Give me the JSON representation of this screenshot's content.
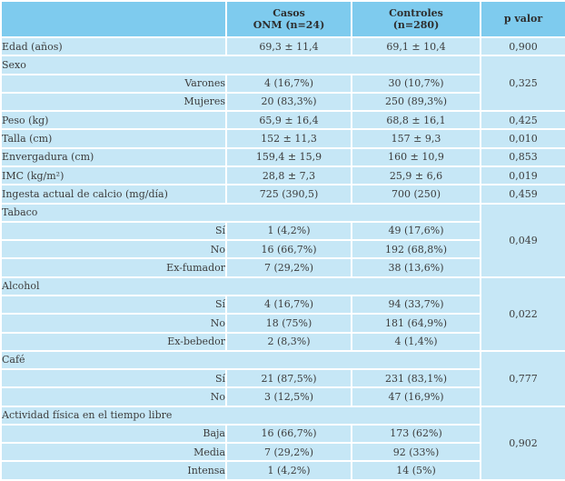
{
  "colors": {
    "header_bg": "#7ecbee",
    "row_bg": "#c6e7f6",
    "divider": "#ffffff",
    "text": "#3c3c3c",
    "header_text": "#2e2e2e"
  },
  "table": {
    "header": {
      "empty": "",
      "casos_line1": "Casos",
      "casos_line2": "ONM (n=24)",
      "controles_line1": "Controles",
      "controles_line2": "(n=280)",
      "p": "p valor"
    },
    "rows": [
      {
        "type": "simple",
        "label": "Edad (años)",
        "casos": "69,3 ± 11,4",
        "controles": "69,1 ± 10,4",
        "p": "0,900"
      },
      {
        "type": "group",
        "label": "Sexo",
        "p": "0,325",
        "span": 3
      },
      {
        "type": "sub",
        "label": "Varones",
        "casos": "4 (16,7%)",
        "controles": "30 (10,7%)"
      },
      {
        "type": "sub",
        "label": "Mujeres",
        "casos": "20 (83,3%)",
        "controles": "250 (89,3%)"
      },
      {
        "type": "simple",
        "label": "Peso (kg)",
        "casos": "65,9 ± 16,4",
        "controles": "68,8 ± 16,1",
        "p": "0,425"
      },
      {
        "type": "simple",
        "label": "Talla (cm)",
        "casos": "152 ± 11,3",
        "controles": "157 ± 9,3",
        "p": "0,010"
      },
      {
        "type": "simple",
        "label": "Envergadura (cm)",
        "casos": "159,4 ± 15,9",
        "controles": "160 ± 10,9",
        "p": "0,853"
      },
      {
        "type": "simple",
        "label": "IMC (kg/m²)",
        "casos": "28,8 ± 7,3",
        "controles": "25,9 ± 6,6",
        "p": "0,019"
      },
      {
        "type": "simple",
        "label": "Ingesta actual de calcio (mg/día)",
        "casos": "725 (390,5)",
        "controles": "700 (250)",
        "p": "0,459"
      },
      {
        "type": "group",
        "label": "Tabaco",
        "p": "0,049",
        "span": 4
      },
      {
        "type": "sub",
        "label": "Sí",
        "casos": "1 (4,2%)",
        "controles": "49 (17,6%)"
      },
      {
        "type": "sub",
        "label": "No",
        "casos": "16 (66,7%)",
        "controles": "192 (68,8%)"
      },
      {
        "type": "sub",
        "label": "Ex-fumador",
        "casos": "7 (29,2%)",
        "controles": "38 (13,6%)"
      },
      {
        "type": "group",
        "label": "Alcohol",
        "p": "0,022",
        "span": 4
      },
      {
        "type": "sub",
        "label": "Sí",
        "casos": "4 (16,7%)",
        "controles": "94 (33,7%)"
      },
      {
        "type": "sub",
        "label": "No",
        "casos": "18 (75%)",
        "controles": "181 (64,9%)"
      },
      {
        "type": "sub",
        "label": "Ex-bebedor",
        "casos": "2 (8,3%)",
        "controles": "4 (1,4%)"
      },
      {
        "type": "group",
        "label": "Café",
        "p": "0,777",
        "span": 3
      },
      {
        "type": "sub",
        "label": "Sí",
        "casos": "21 (87,5%)",
        "controles": "231 (83,1%)"
      },
      {
        "type": "sub",
        "label": "No",
        "casos": "3 (12,5%)",
        "controles": "47 (16,9%)"
      },
      {
        "type": "group",
        "label": "Actividad física en el tiempo libre",
        "p": "0,902",
        "span": 4
      },
      {
        "type": "sub",
        "label": "Baja",
        "casos": "16 (66,7%)",
        "controles": "173 (62%)"
      },
      {
        "type": "sub",
        "label": "Media",
        "casos": "7 (29,2%)",
        "controles": "92 (33%)"
      },
      {
        "type": "sub",
        "label": "Intensa",
        "casos": "1 (4,2%)",
        "controles": "14 (5%)"
      }
    ]
  }
}
